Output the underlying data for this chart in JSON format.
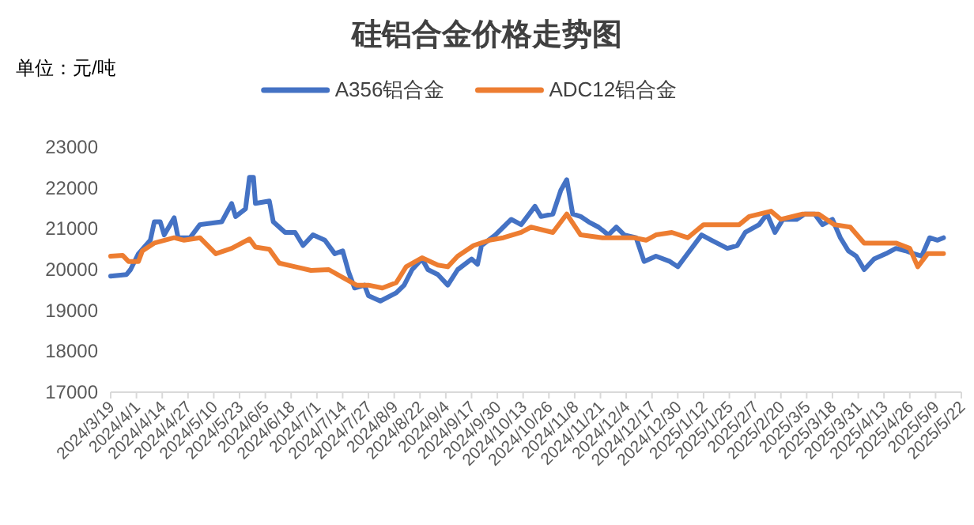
{
  "chart_data": {
    "type": "line",
    "title": "硅铝合金价格走势图",
    "ylabel": "单位：元/吨",
    "legend": "top",
    "xlim": [
      "2024-03-19",
      "2025-05-22"
    ],
    "xticks": [
      {
        "value": "2024-03-19",
        "label": "2024/3/19"
      },
      {
        "value": "2024-04-01",
        "label": "2024/4/1"
      },
      {
        "value": "2024-04-14",
        "label": "2024/4/14"
      },
      {
        "value": "2024-04-27",
        "label": "2024/4/27"
      },
      {
        "value": "2024-05-10",
        "label": "2024/5/10"
      },
      {
        "value": "2024-05-23",
        "label": "2024/5/23"
      },
      {
        "value": "2024-06-05",
        "label": "2024/6/5"
      },
      {
        "value": "2024-06-18",
        "label": "2024/6/18"
      },
      {
        "value": "2024-07-01",
        "label": "2024/7/1"
      },
      {
        "value": "2024-07-14",
        "label": "2024/7/14"
      },
      {
        "value": "2024-07-27",
        "label": "2024/7/27"
      },
      {
        "value": "2024-08-09",
        "label": "2024/8/9"
      },
      {
        "value": "2024-08-22",
        "label": "2024/8/22"
      },
      {
        "value": "2024-09-04",
        "label": "2024/9/4"
      },
      {
        "value": "2024-09-17",
        "label": "2024/9/17"
      },
      {
        "value": "2024-09-30",
        "label": "2024/9/30"
      },
      {
        "value": "2024-10-13",
        "label": "2024/10/13"
      },
      {
        "value": "2024-10-26",
        "label": "2024/10/26"
      },
      {
        "value": "2024-11-08",
        "label": "2024/11/8"
      },
      {
        "value": "2024-11-21",
        "label": "2024/11/21"
      },
      {
        "value": "2024-12-04",
        "label": "2024/12/4"
      },
      {
        "value": "2024-12-17",
        "label": "2024/12/17"
      },
      {
        "value": "2024-12-30",
        "label": "2024/12/30"
      },
      {
        "value": "2025-01-12",
        "label": "2025/1/12"
      },
      {
        "value": "2025-01-25",
        "label": "2025/1/25"
      },
      {
        "value": "2025-02-07",
        "label": "2025/2/7"
      },
      {
        "value": "2025-02-20",
        "label": "2025/2/20"
      },
      {
        "value": "2025-03-05",
        "label": "2025/3/5"
      },
      {
        "value": "2025-03-18",
        "label": "2025/3/18"
      },
      {
        "value": "2025-03-31",
        "label": "2025/3/31"
      },
      {
        "value": "2025-04-13",
        "label": "2025/4/13"
      },
      {
        "value": "2025-04-26",
        "label": "2025/4/26"
      },
      {
        "value": "2025-05-09",
        "label": "2025/5/9"
      },
      {
        "value": "2025-05-22",
        "label": "2025/5/22"
      }
    ],
    "ylim": [
      17000,
      23000
    ],
    "yticks": [
      17000,
      18000,
      19000,
      20000,
      21000,
      22000,
      23000
    ],
    "series": [
      {
        "name": "A356铝合金",
        "color": "#4472c4",
        "x": [
          "2024-03-19",
          "2024-03-27",
          "2024-03-29",
          "2024-04-02",
          "2024-04-08",
          "2024-04-10",
          "2024-04-13",
          "2024-04-15",
          "2024-04-20",
          "2024-04-22",
          "2024-04-28",
          "2024-05-03",
          "2024-05-14",
          "2024-05-19",
          "2024-05-21",
          "2024-05-26",
          "2024-05-28",
          "2024-05-30",
          "2024-05-31",
          "2024-06-07",
          "2024-06-09",
          "2024-06-15",
          "2024-06-20",
          "2024-06-24",
          "2024-06-29",
          "2024-07-05",
          "2024-07-10",
          "2024-07-14",
          "2024-07-17",
          "2024-07-20",
          "2024-07-25",
          "2024-07-27",
          "2024-08-02",
          "2024-08-10",
          "2024-08-14",
          "2024-08-18",
          "2024-08-23",
          "2024-08-26",
          "2024-08-31",
          "2024-09-05",
          "2024-09-10",
          "2024-09-17",
          "2024-09-20",
          "2024-09-22",
          "2024-09-29",
          "2024-10-03",
          "2024-10-07",
          "2024-10-12",
          "2024-10-19",
          "2024-10-22",
          "2024-10-28",
          "2024-11-01",
          "2024-11-04",
          "2024-11-07",
          "2024-11-11",
          "2024-11-15",
          "2024-11-20",
          "2024-11-25",
          "2024-11-29",
          "2024-12-03",
          "2024-12-09",
          "2024-12-13",
          "2024-12-19",
          "2024-12-26",
          "2024-12-30",
          "2025-01-03",
          "2025-01-11",
          "2025-01-16",
          "2025-01-24",
          "2025-01-29",
          "2025-02-02",
          "2025-02-09",
          "2025-02-13",
          "2025-02-17",
          "2025-02-21",
          "2025-02-28",
          "2025-03-04",
          "2025-03-09",
          "2025-03-13",
          "2025-03-18",
          "2025-03-22",
          "2025-03-26",
          "2025-03-30",
          "2025-04-03",
          "2025-04-08",
          "2025-04-14",
          "2025-04-19",
          "2025-04-24",
          "2025-04-28",
          "2025-05-02",
          "2025-05-06",
          "2025-05-10",
          "2025-05-13"
        ],
        "values": [
          19840,
          19880,
          20000,
          20390,
          20720,
          21170,
          21170,
          20850,
          21270,
          20780,
          20780,
          21100,
          21170,
          21620,
          21300,
          21490,
          22260,
          22260,
          21620,
          21680,
          21170,
          20910,
          20910,
          20590,
          20850,
          20720,
          20390,
          20460,
          19940,
          19550,
          19620,
          19360,
          19230,
          19430,
          19620,
          20000,
          20260,
          20000,
          19880,
          19620,
          20000,
          20260,
          20130,
          20590,
          20850,
          21040,
          21230,
          21100,
          21550,
          21300,
          21360,
          21940,
          22200,
          21360,
          21300,
          21170,
          21040,
          20850,
          21040,
          20850,
          20780,
          20200,
          20330,
          20200,
          20070,
          20330,
          20850,
          20720,
          20520,
          20590,
          20910,
          21100,
          21360,
          20910,
          21230,
          21230,
          21360,
          21360,
          21100,
          21230,
          20780,
          20460,
          20330,
          20000,
          20260,
          20390,
          20520,
          20460,
          20390,
          20330,
          20780,
          20720,
          20780
        ]
      },
      {
        "name": "ADC12铝合金",
        "color": "#ed7d31",
        "x": [
          "2024-03-19",
          "2024-03-25",
          "2024-03-28",
          "2024-04-02",
          "2024-04-04",
          "2024-04-10",
          "2024-04-20",
          "2024-04-25",
          "2024-05-03",
          "2024-05-11",
          "2024-05-19",
          "2024-05-28",
          "2024-05-31",
          "2024-06-07",
          "2024-06-12",
          "2024-06-20",
          "2024-06-28",
          "2024-07-07",
          "2024-07-14",
          "2024-07-21",
          "2024-07-27",
          "2024-08-03",
          "2024-08-10",
          "2024-08-15",
          "2024-08-23",
          "2024-08-31",
          "2024-09-05",
          "2024-09-10",
          "2024-09-18",
          "2024-09-26",
          "2024-10-03",
          "2024-10-12",
          "2024-10-17",
          "2024-10-28",
          "2024-11-04",
          "2024-11-11",
          "2024-11-22",
          "2024-12-08",
          "2024-12-14",
          "2024-12-19",
          "2024-12-27",
          "2025-01-04",
          "2025-01-12",
          "2025-01-30",
          "2025-02-04",
          "2025-02-15",
          "2025-02-20",
          "2025-03-03",
          "2025-03-11",
          "2025-03-19",
          "2025-03-27",
          "2025-04-03",
          "2025-04-19",
          "2025-04-26",
          "2025-04-30",
          "2025-05-05",
          "2025-05-13"
        ],
        "values": [
          20330,
          20350,
          20200,
          20200,
          20460,
          20650,
          20780,
          20720,
          20780,
          20390,
          20520,
          20750,
          20550,
          20500,
          20160,
          20070,
          19980,
          20000,
          19810,
          19620,
          19620,
          19550,
          19680,
          20070,
          20290,
          20110,
          20070,
          20330,
          20590,
          20720,
          20780,
          20910,
          21040,
          20910,
          21360,
          20850,
          20780,
          20780,
          20720,
          20850,
          20910,
          20780,
          21100,
          21100,
          21300,
          21430,
          21230,
          21360,
          21360,
          21100,
          21040,
          20650,
          20650,
          20520,
          20070,
          20390,
          20390
        ]
      }
    ]
  }
}
